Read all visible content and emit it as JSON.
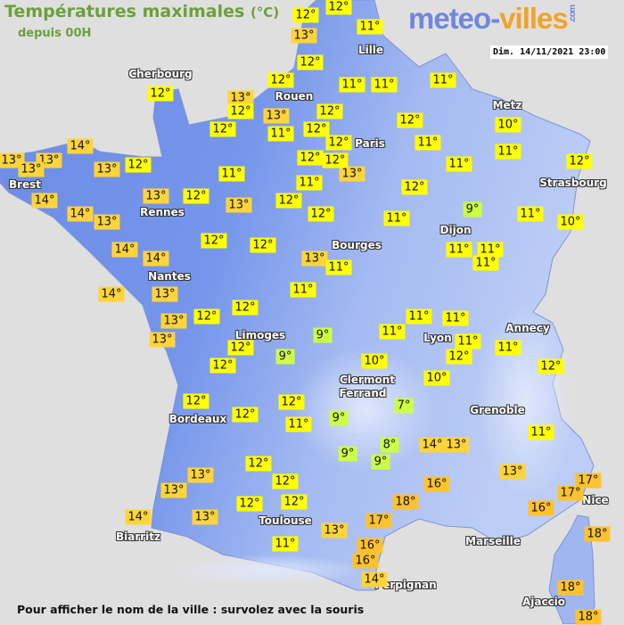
{
  "header": {
    "title": "Températures maximales",
    "unit": "(°C)",
    "subtitle": "depuis 00H",
    "logo_main": "meteo-",
    "logo_accent": "villes",
    "logo_suffix": ".com",
    "datetime": "Dim. 14/11/2021 23:00"
  },
  "footer": "Pour afficher le nom de la ville : survolez avec la souris",
  "colors": {
    "background": "#e0dfdf",
    "land_warm": "#6c8ce6",
    "land_cool": "#a9bff2",
    "temp_cold": "#ccff44",
    "temp_mild": "#ffff00",
    "temp_warm": "#ffd43a",
    "temp_hot": "#ffc22e"
  },
  "cities": [
    "Cherbourg",
    "Lille",
    "Rouen",
    "Paris",
    "Metz",
    "Brest",
    "Rennes",
    "Strasbourg",
    "Dijon",
    "Bourges",
    "Nantes",
    "Lyon",
    "Annecy",
    "Limoges",
    "Clermont",
    "Ferrand",
    "Grenoble",
    "Bordeaux",
    "Nice",
    "Toulouse",
    "Biarritz",
    "Marseille",
    "Perpignan",
    "Ajaccio"
  ],
  "temperatures": [
    "12°",
    "13°",
    "12°",
    "11°",
    "12°",
    "12°",
    "13°",
    "12°",
    "13°",
    "11°",
    "12°",
    "12°",
    "12°",
    "11°",
    "11°",
    "11°",
    "12°",
    "12°",
    "11°",
    "12°",
    "12°",
    "13°",
    "11°",
    "12°",
    "14°",
    "13°",
    "13°",
    "13°",
    "13°",
    "12°",
    "14°",
    "14°",
    "13°",
    "13°",
    "12°",
    "11°",
    "13°",
    "12°",
    "12°",
    "12°",
    "12°",
    "14°",
    "14°",
    "14°",
    "13°",
    "11°",
    "12°",
    "11°",
    "10°",
    "11°",
    "12°",
    "9°",
    "11°",
    "10°",
    "11°",
    "11°",
    "11°",
    "13°",
    "11°",
    "11°",
    "13°",
    "12°",
    "12°",
    "11°",
    "11°",
    "13°",
    "12°",
    "12°",
    "9°",
    "9°",
    "11°",
    "11°",
    "12°",
    "11°",
    "12°",
    "10°",
    "10°",
    "7°",
    "12°",
    "12°",
    "12°",
    "11°",
    "9°",
    "8°",
    "9°",
    "9°",
    "14°",
    "13°",
    "11°",
    "13°",
    "12°",
    "12°",
    "13°",
    "13°",
    "16°",
    "17°",
    "17°",
    "12°",
    "12°",
    "13°",
    "14°",
    "18°",
    "16°",
    "17°",
    "13°",
    "11°",
    "18°",
    "16°",
    "16°",
    "14°",
    "18°",
    "18°"
  ]
}
